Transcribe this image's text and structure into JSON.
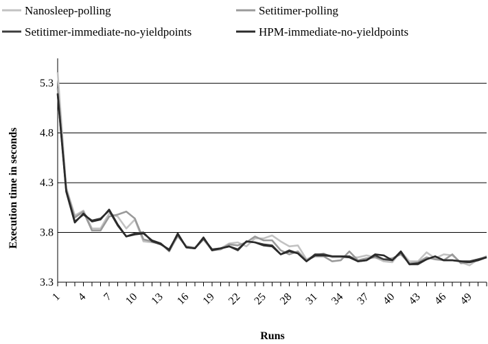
{
  "chart_data": {
    "type": "line",
    "title": "",
    "xlabel": "Runs",
    "ylabel": "Execution time in seconds",
    "ylim": [
      3.3,
      5.55
    ],
    "yticks": [
      "3.3",
      "3.8",
      "4.3",
      "4.8",
      "5.3"
    ],
    "xticks": [
      "1",
      "4",
      "7",
      "10",
      "13",
      "16",
      "19",
      "22",
      "25",
      "28",
      "31",
      "34",
      "37",
      "40",
      "43",
      "46",
      "49"
    ],
    "x_range": [
      1,
      51
    ],
    "grid": "horizontal",
    "legend_position": "top",
    "series": [
      {
        "name": "Nanosleep-polling",
        "color": "#c2c2c2",
        "values": [
          5.41,
          4.25,
          3.97,
          4.02,
          3.84,
          3.84,
          3.99,
          3.96,
          3.84,
          3.93,
          3.71,
          3.7,
          3.69,
          3.62,
          3.76,
          3.66,
          3.65,
          3.73,
          3.63,
          3.64,
          3.69,
          3.7,
          3.66,
          3.74,
          3.74,
          3.77,
          3.71,
          3.66,
          3.67,
          3.53,
          3.57,
          3.59,
          3.55,
          3.55,
          3.55,
          3.55,
          3.57,
          3.55,
          3.51,
          3.5,
          3.61,
          3.51,
          3.51,
          3.6,
          3.54,
          3.58,
          3.57,
          3.5,
          3.47,
          3.53,
          3.56
        ]
      },
      {
        "name": "Setitimer-polling",
        "color": "#9a9a9a",
        "values": [
          5.25,
          4.23,
          3.95,
          4.01,
          3.82,
          3.82,
          3.96,
          3.98,
          4.01,
          3.94,
          3.73,
          3.71,
          3.69,
          3.61,
          3.77,
          3.66,
          3.64,
          3.73,
          3.62,
          3.63,
          3.68,
          3.67,
          3.7,
          3.76,
          3.72,
          3.72,
          3.62,
          3.58,
          3.61,
          3.52,
          3.56,
          3.56,
          3.51,
          3.52,
          3.61,
          3.52,
          3.54,
          3.55,
          3.53,
          3.54,
          3.58,
          3.49,
          3.5,
          3.55,
          3.53,
          3.52,
          3.58,
          3.49,
          3.5,
          3.52,
          3.56
        ]
      },
      {
        "name": "Setitimer-immediate-no-yieldpoints",
        "color": "#3c3c3c",
        "values": [
          5.2,
          4.22,
          3.91,
          3.98,
          3.92,
          3.94,
          4.02,
          3.87,
          3.76,
          3.79,
          3.8,
          3.71,
          3.68,
          3.63,
          3.78,
          3.65,
          3.64,
          3.74,
          3.63,
          3.64,
          3.66,
          3.62,
          3.71,
          3.7,
          3.68,
          3.67,
          3.58,
          3.62,
          3.59,
          3.51,
          3.58,
          3.58,
          3.56,
          3.56,
          3.56,
          3.51,
          3.52,
          3.57,
          3.53,
          3.52,
          3.6,
          3.48,
          3.48,
          3.53,
          3.56,
          3.52,
          3.52,
          3.51,
          3.51,
          3.53,
          3.55
        ]
      },
      {
        "name": "HPM-immediate-no-yieldpoints",
        "color": "#2a2a2a",
        "values": [
          5.19,
          4.21,
          3.9,
          3.99,
          3.91,
          3.93,
          4.03,
          3.88,
          3.76,
          3.78,
          3.79,
          3.72,
          3.69,
          3.62,
          3.79,
          3.65,
          3.64,
          3.75,
          3.62,
          3.64,
          3.66,
          3.63,
          3.71,
          3.7,
          3.67,
          3.66,
          3.58,
          3.61,
          3.59,
          3.51,
          3.57,
          3.57,
          3.56,
          3.56,
          3.55,
          3.51,
          3.52,
          3.58,
          3.57,
          3.52,
          3.61,
          3.48,
          3.49,
          3.53,
          3.56,
          3.52,
          3.52,
          3.51,
          3.5,
          3.52,
          3.55
        ]
      }
    ]
  }
}
